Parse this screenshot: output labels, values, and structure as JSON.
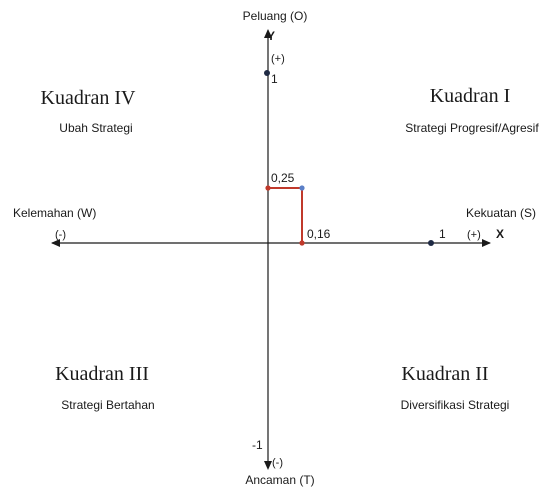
{
  "axes": {
    "top_label": "Peluang (O)",
    "bottom_label": "Ancaman (T)",
    "left_label": "Kelemahan (W)",
    "right_label": "Kekuatan (S)",
    "y_letter": "Y",
    "x_letter": "X",
    "y_positive_sign": "(+)",
    "y_negative_sign": "(-)",
    "x_negative_sign": "(-)",
    "x_positive_sign": "(+)"
  },
  "ticks": {
    "y_max": "1",
    "y_min": "-1",
    "x_max": "1"
  },
  "quadrants": {
    "q1": {
      "title": "Kuadran I",
      "strategy": "Strategi Progresif/Agresif"
    },
    "q2": {
      "title": "Kuadran II",
      "strategy": "Diversifikasi Strategi"
    },
    "q3": {
      "title": "Kuadran III",
      "strategy": "Strategi Bertahan"
    },
    "q4": {
      "title": "Kuadran IV",
      "strategy": "Ubah Strategi"
    }
  },
  "position": {
    "x_value": 0.16,
    "y_value": 0.25,
    "x_label": "0,16",
    "y_label": "0,25"
  },
  "colors": {
    "axis": "#1a1a1a",
    "marker_line": "#c0392b",
    "point_dark": "#1f2a44",
    "point_red": "#c0392b",
    "point_blue": "#5b7fc7"
  }
}
